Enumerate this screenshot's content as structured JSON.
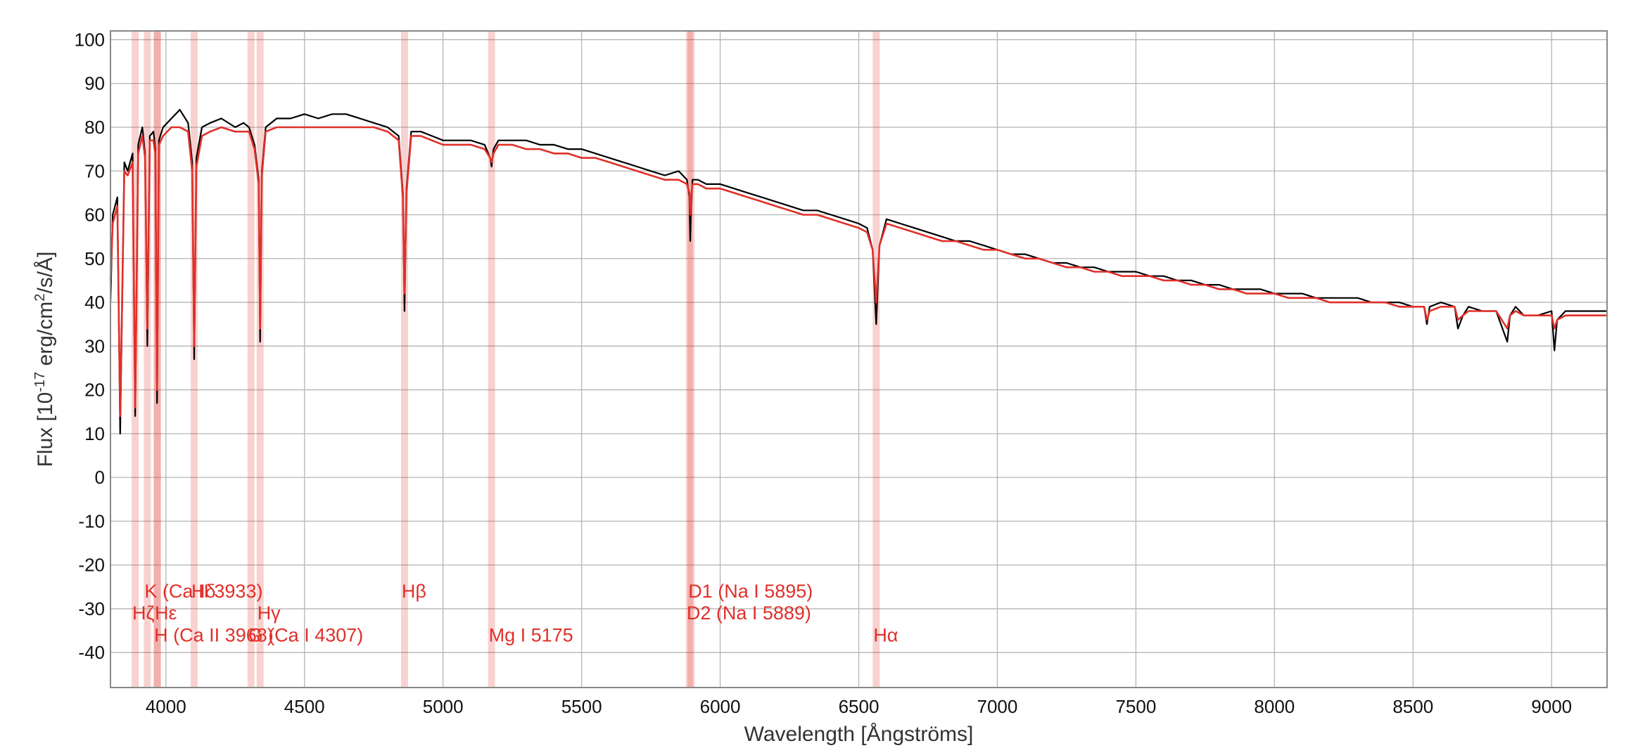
{
  "chart_data": {
    "type": "line",
    "xlabel": "Wavelength [Ångströms]",
    "ylabel_parts": [
      "Flux [10",
      "-17",
      " erg/cm",
      "2",
      "/s/Å]"
    ],
    "xlim": [
      3800,
      9200
    ],
    "ylim": [
      -48,
      102
    ],
    "x_ticks": [
      "4000",
      "4500",
      "5000",
      "5500",
      "6000",
      "6500",
      "7000",
      "7500",
      "8000",
      "8500",
      "9000"
    ],
    "y_ticks": [
      "100",
      "90",
      "80",
      "70",
      "60",
      "50",
      "40",
      "30",
      "20",
      "10",
      "0",
      "-10",
      "-20",
      "-30",
      "-40"
    ],
    "grid": true,
    "series": [
      {
        "color": "#000000",
        "x": [
          3800,
          3808,
          3825,
          3835,
          3850,
          3862,
          3880,
          3889,
          3900,
          3915,
          3925,
          3933,
          3942,
          3955,
          3962,
          3968,
          3975,
          3990,
          4020,
          4050,
          4080,
          4095,
          4102,
          4110,
          4130,
          4160,
          4200,
          4250,
          4280,
          4300,
          4320,
          4335,
          4340,
          4346,
          4360,
          4400,
          4450,
          4500,
          4550,
          4600,
          4650,
          4700,
          4750,
          4800,
          4840,
          4855,
          4861,
          4868,
          4885,
          4920,
          4960,
          5000,
          5050,
          5100,
          5150,
          5170,
          5175,
          5182,
          5200,
          5250,
          5300,
          5350,
          5400,
          5450,
          5500,
          5550,
          5600,
          5650,
          5700,
          5750,
          5800,
          5850,
          5880,
          5889,
          5892,
          5895,
          5900,
          5920,
          5950,
          6000,
          6050,
          6100,
          6150,
          6200,
          6250,
          6300,
          6350,
          6400,
          6450,
          6500,
          6530,
          6550,
          6563,
          6575,
          6600,
          6650,
          6700,
          6750,
          6800,
          6850,
          6900,
          6950,
          7000,
          7050,
          7100,
          7150,
          7200,
          7250,
          7300,
          7350,
          7400,
          7450,
          7500,
          7550,
          7600,
          7650,
          7700,
          7750,
          7800,
          7850,
          7900,
          7950,
          8000,
          8050,
          8100,
          8150,
          8200,
          8250,
          8300,
          8350,
          8400,
          8450,
          8500,
          8540,
          8550,
          8560,
          8600,
          8650,
          8662,
          8680,
          8700,
          8750,
          8800,
          8840,
          8850,
          8870,
          8900,
          8950,
          9000,
          9010,
          9020,
          9050,
          9100,
          9150,
          9200
        ],
        "y": [
          40,
          60,
          64,
          10,
          72,
          70,
          74,
          14,
          76,
          80,
          74,
          30,
          78,
          79,
          75,
          17,
          77,
          80,
          82,
          84,
          81,
          72,
          27,
          73,
          80,
          81,
          82,
          80,
          81,
          80,
          76,
          68,
          31,
          70,
          80,
          82,
          82,
          83,
          82,
          83,
          83,
          82,
          81,
          80,
          78,
          65,
          38,
          66,
          79,
          79,
          78,
          77,
          77,
          77,
          76,
          73,
          71,
          75,
          77,
          77,
          77,
          76,
          76,
          75,
          75,
          74,
          73,
          72,
          71,
          70,
          69,
          70,
          68,
          64,
          54,
          62,
          68,
          68,
          67,
          67,
          66,
          65,
          64,
          63,
          62,
          61,
          61,
          60,
          59,
          58,
          57,
          52,
          35,
          53,
          59,
          58,
          57,
          56,
          55,
          54,
          54,
          53,
          52,
          51,
          51,
          50,
          49,
          49,
          48,
          48,
          47,
          47,
          47,
          46,
          46,
          45,
          45,
          44,
          44,
          43,
          43,
          43,
          42,
          42,
          42,
          41,
          41,
          41,
          41,
          40,
          40,
          40,
          39,
          39,
          35,
          39,
          40,
          39,
          34,
          37,
          39,
          38,
          38,
          31,
          37,
          39,
          37,
          37,
          38,
          29,
          36,
          38,
          38,
          38,
          38
        ]
      },
      {
        "color": "#e0302a",
        "x": [
          3800,
          3808,
          3825,
          3835,
          3850,
          3862,
          3880,
          3889,
          3900,
          3915,
          3925,
          3933,
          3942,
          3955,
          3962,
          3968,
          3975,
          3990,
          4020,
          4050,
          4080,
          4095,
          4102,
          4110,
          4130,
          4160,
          4200,
          4250,
          4280,
          4300,
          4320,
          4335,
          4340,
          4346,
          4360,
          4400,
          4450,
          4500,
          4550,
          4600,
          4650,
          4700,
          4750,
          4800,
          4840,
          4855,
          4861,
          4868,
          4885,
          4920,
          4960,
          5000,
          5050,
          5100,
          5150,
          5170,
          5175,
          5182,
          5200,
          5250,
          5300,
          5350,
          5400,
          5450,
          5500,
          5550,
          5600,
          5650,
          5700,
          5750,
          5800,
          5850,
          5880,
          5889,
          5892,
          5895,
          5900,
          5920,
          5950,
          6000,
          6050,
          6100,
          6150,
          6200,
          6250,
          6300,
          6350,
          6400,
          6450,
          6500,
          6530,
          6550,
          6563,
          6575,
          6600,
          6650,
          6700,
          6750,
          6800,
          6850,
          6900,
          6950,
          7000,
          7050,
          7100,
          7150,
          7200,
          7250,
          7300,
          7350,
          7400,
          7450,
          7500,
          7550,
          7600,
          7650,
          7700,
          7750,
          7800,
          7850,
          7900,
          7950,
          8000,
          8050,
          8100,
          8150,
          8200,
          8250,
          8300,
          8350,
          8400,
          8450,
          8500,
          8540,
          8550,
          8560,
          8600,
          8650,
          8662,
          8680,
          8700,
          8750,
          8800,
          8840,
          8850,
          8870,
          8900,
          8950,
          9000,
          9010,
          9020,
          9050,
          9100,
          9150,
          9200
        ],
        "y": [
          45,
          58,
          62,
          14,
          70,
          69,
          72,
          16,
          74,
          78,
          73,
          34,
          77,
          77,
          74,
          20,
          76,
          78,
          80,
          80,
          79,
          70,
          30,
          71,
          78,
          79,
          80,
          79,
          79,
          79,
          75,
          67,
          34,
          69,
          79,
          80,
          80,
          80,
          80,
          80,
          80,
          80,
          80,
          79,
          77,
          64,
          42,
          65,
          78,
          78,
          77,
          76,
          76,
          76,
          75,
          73,
          72,
          74,
          76,
          76,
          75,
          75,
          74,
          74,
          73,
          73,
          72,
          71,
          70,
          69,
          68,
          68,
          67,
          65,
          60,
          64,
          67,
          67,
          66,
          66,
          65,
          64,
          63,
          62,
          61,
          60,
          60,
          59,
          58,
          57,
          56,
          52,
          40,
          53,
          58,
          57,
          56,
          55,
          54,
          54,
          53,
          52,
          52,
          51,
          50,
          50,
          49,
          48,
          48,
          47,
          47,
          46,
          46,
          46,
          45,
          45,
          44,
          44,
          43,
          43,
          42,
          42,
          42,
          41,
          41,
          41,
          40,
          40,
          40,
          40,
          40,
          39,
          39,
          39,
          36,
          38,
          39,
          39,
          36,
          37,
          38,
          38,
          38,
          34,
          37,
          38,
          37,
          37,
          37,
          34,
          36,
          37,
          37,
          37,
          37
        ]
      }
    ],
    "spectral_lines": [
      {
        "label": "Hζ",
        "wavelength": 3889,
        "row": 1
      },
      {
        "label": "K (Ca II 3933)",
        "wavelength": 3933,
        "row": 0
      },
      {
        "label": "Hε",
        "wavelength": 3970,
        "row": 1
      },
      {
        "label": "H (Ca II 3968)",
        "wavelength": 3968,
        "row": 2
      },
      {
        "label": "Hδ",
        "wavelength": 4102,
        "row": 0
      },
      {
        "label": "G (Ca I 4307)",
        "wavelength": 4307,
        "row": 2
      },
      {
        "label": "Hγ",
        "wavelength": 4340,
        "row": 1
      },
      {
        "label": "Hβ",
        "wavelength": 4861,
        "row": 0
      },
      {
        "label": "Mg I 5175",
        "wavelength": 5175,
        "row": 2
      },
      {
        "label": "D2 (Na I 5889)",
        "wavelength": 5889,
        "row": 1
      },
      {
        "label": "D1 (Na I 5895)",
        "wavelength": 5895,
        "row": 0
      },
      {
        "label": "Hα",
        "wavelength": 6563,
        "row": 2
      }
    ],
    "line_color": "#e0302a"
  }
}
